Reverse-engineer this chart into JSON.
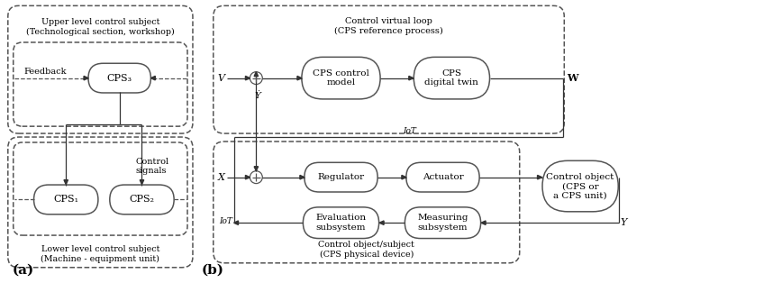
{
  "fig_width": 8.68,
  "fig_height": 3.14,
  "dpi": 100,
  "diagram_a": {
    "label": "(a)",
    "upper_box_label": "Upper level control subject\n(Technological section, workshop)",
    "lower_box_label": "Lower level control subject\n(Machine - equipment unit)",
    "feedback_label": "Feedback",
    "control_signals_label": "Control\nsignals",
    "cps3_label": "CPS₃",
    "cps1_label": "CPS₁",
    "cps2_label": "CPS₂"
  },
  "diagram_b": {
    "label": "(b)",
    "virtual_loop_label": "Control virtual loop\n(CPS reference process)",
    "physical_label": "Control object/subject\n(CPS physical device)",
    "control_model_label": "CPS control\nmodel",
    "digital_twin_label": "CPS\ndigital twin",
    "regulator_label": "Regulator",
    "actuator_label": "Actuator",
    "evaluation_label": "Evaluation\nsubsystem",
    "measuring_label": "Measuring\nsubsystem",
    "control_object_label": "Control object\n(CPS or\na CPS unit)",
    "V_label": "V",
    "W_label": "W",
    "X_label": "X",
    "Y_label": "Y",
    "Ydot_label": "Ẏ",
    "IoT_top": "IoT",
    "IoT_bot": "IoT"
  }
}
